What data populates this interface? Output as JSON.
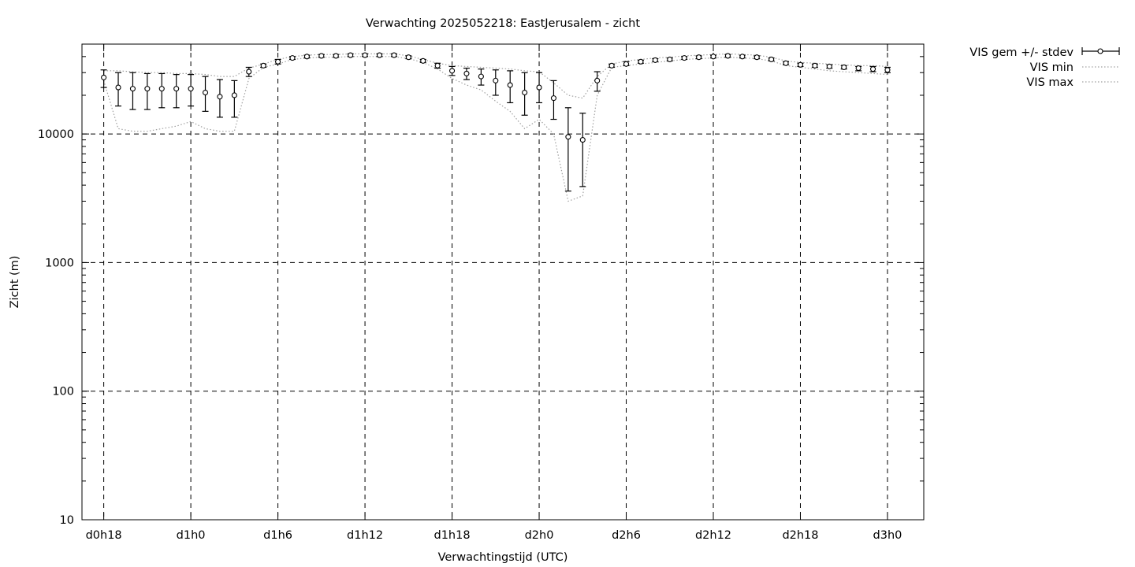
{
  "chart_data": {
    "type": "line",
    "title": "Verwachting 2025052218: EastJerusalem - zicht",
    "xlabel": "Verwachtingstijd (UTC)",
    "ylabel": "Zicht (m)",
    "yscale": "log",
    "ylim": [
      10,
      50000
    ],
    "y_ticks": [
      10,
      100,
      1000,
      10000
    ],
    "xlim": [
      -1.5,
      56.5
    ],
    "x_ticks": [
      {
        "x": 0,
        "label": "d0h18"
      },
      {
        "x": 6,
        "label": "d1h0"
      },
      {
        "x": 12,
        "label": "d1h6"
      },
      {
        "x": 18,
        "label": "d1h12"
      },
      {
        "x": 24,
        "label": "d1h18"
      },
      {
        "x": 30,
        "label": "d2h0"
      },
      {
        "x": 36,
        "label": "d2h6"
      },
      {
        "x": 42,
        "label": "d2h12"
      },
      {
        "x": 48,
        "label": "d2h18"
      },
      {
        "x": 54,
        "label": "d3h0"
      }
    ],
    "grid": true,
    "legend_position": "top-right, outside plot",
    "x": [
      0,
      1,
      2,
      3,
      4,
      5,
      6,
      7,
      8,
      9,
      10,
      11,
      12,
      13,
      14,
      15,
      16,
      17,
      18,
      19,
      20,
      21,
      22,
      23,
      24,
      25,
      26,
      27,
      28,
      29,
      30,
      31,
      32,
      33,
      34,
      35,
      36,
      37,
      38,
      39,
      40,
      41,
      42,
      43,
      44,
      45,
      46,
      47,
      48,
      49,
      50,
      51,
      52,
      53,
      54
    ],
    "series": [
      {
        "name": "VIS gem +/- stdev",
        "style": "points with error bars",
        "mean": [
          27500,
          23000,
          22500,
          22500,
          22500,
          22500,
          22500,
          21000,
          19500,
          20000,
          30500,
          34000,
          36500,
          39000,
          40000,
          40500,
          40500,
          41000,
          41000,
          41000,
          41000,
          39500,
          37000,
          34000,
          31000,
          29500,
          28000,
          26000,
          24000,
          21000,
          23000,
          19000,
          9500,
          9000,
          26000,
          34000,
          35000,
          36500,
          37500,
          38000,
          39000,
          39500,
          40000,
          40500,
          40000,
          39500,
          38000,
          35500,
          34500,
          34000,
          33500,
          33000,
          32500,
          32000,
          31500
        ],
        "low": [
          23000,
          16500,
          15500,
          15500,
          16000,
          16000,
          16500,
          15000,
          13500,
          13500,
          28000,
          33000,
          35000,
          38000,
          39000,
          39500,
          39500,
          40000,
          40000,
          40000,
          40000,
          38500,
          36000,
          32500,
          28500,
          26500,
          24000,
          20000,
          17500,
          14000,
          17500,
          13000,
          3600,
          3900,
          21500,
          33000,
          34000,
          35500,
          36500,
          37000,
          38000,
          38500,
          39000,
          39500,
          39000,
          38500,
          37000,
          34500,
          33500,
          33000,
          32500,
          32000,
          31000,
          30500,
          30000
        ],
        "high": [
          31500,
          30000,
          30000,
          29500,
          29500,
          29000,
          29000,
          28000,
          26500,
          26000,
          33000,
          35000,
          38000,
          40000,
          41000,
          41500,
          41500,
          42000,
          42000,
          42000,
          42000,
          40500,
          38000,
          35500,
          33500,
          32500,
          32000,
          31500,
          31000,
          30000,
          30000,
          26000,
          16000,
          14500,
          30500,
          35000,
          36500,
          37500,
          38500,
          39000,
          40000,
          40500,
          41000,
          41500,
          41000,
          40500,
          39000,
          36500,
          35500,
          35000,
          34500,
          34000,
          33500,
          33500,
          33000
        ]
      },
      {
        "name": "VIS min",
        "style": "dotted line",
        "values": [
          26000,
          11000,
          10500,
          10500,
          11000,
          11500,
          12500,
          11000,
          10500,
          10500,
          27000,
          33000,
          35000,
          38000,
          39000,
          39500,
          39500,
          40000,
          40000,
          40000,
          40000,
          38500,
          36000,
          32000,
          27000,
          24000,
          22000,
          18000,
          15000,
          11000,
          13000,
          10000,
          3000,
          3300,
          20000,
          33000,
          34000,
          35000,
          36000,
          37000,
          38000,
          38500,
          39000,
          39500,
          39000,
          38500,
          37000,
          34000,
          33000,
          32000,
          31000,
          30500,
          30000,
          29500,
          29000
        ]
      },
      {
        "name": "VIS max",
        "style": "dotted line",
        "values": [
          31000,
          31000,
          30500,
          30000,
          30000,
          29500,
          29500,
          29000,
          28000,
          28000,
          32500,
          35000,
          38000,
          40000,
          41000,
          41500,
          41500,
          42000,
          42000,
          42000,
          42000,
          40500,
          38000,
          35500,
          34000,
          33500,
          33000,
          32500,
          32000,
          31000,
          30500,
          25000,
          20000,
          19000,
          28000,
          35000,
          37000,
          38000,
          39000,
          39500,
          40500,
          41000,
          41500,
          42000,
          41500,
          41000,
          39500,
          37000,
          36000,
          35500,
          35000,
          34500,
          34000,
          34000,
          33500
        ]
      }
    ]
  }
}
